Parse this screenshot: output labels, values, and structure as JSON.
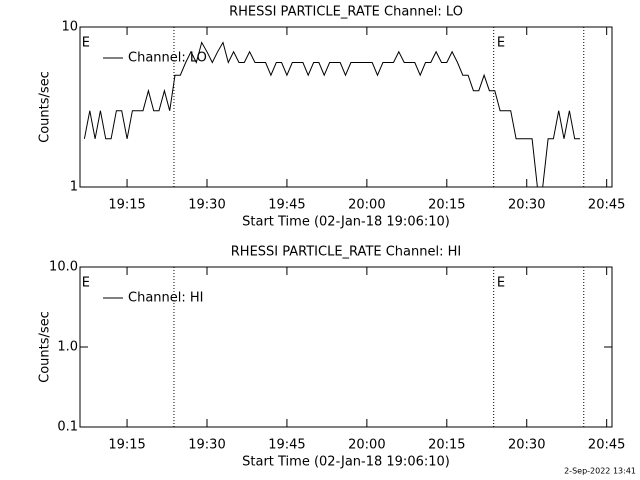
{
  "chart_data": [
    {
      "type": "line",
      "title": "RHESSI PARTICLE_RATE Channel: LO",
      "x_label": "Start Time (02-Jan-18 19:06:10)",
      "y_label": "Counts/sec",
      "log_y": true,
      "legend": "upper left",
      "xlim": [
        6.17,
        106
      ],
      "xticks": [
        {
          "value": 15,
          "label": "19:15"
        },
        {
          "value": 30,
          "label": "19:30"
        },
        {
          "value": 45,
          "label": "19:45"
        },
        {
          "value": 60,
          "label": "20:00"
        },
        {
          "value": 75,
          "label": "20:15"
        },
        {
          "value": 90,
          "label": "20:30"
        },
        {
          "value": 105,
          "label": "20:45"
        }
      ],
      "ylim": [
        1,
        10
      ],
      "yticks": [
        1,
        10
      ],
      "vlines": [
        23.8,
        83.8,
        100.7
      ],
      "annotations": [
        {
          "text": "E",
          "x": 6.5
        },
        {
          "text": "E",
          "x": 84.4
        }
      ],
      "x": [
        7,
        8,
        9,
        10,
        11,
        12,
        13,
        14,
        15,
        16,
        17,
        18,
        19,
        20,
        21,
        22,
        23,
        24,
        25,
        26,
        27,
        28,
        29,
        30,
        31,
        32,
        33,
        34,
        35,
        36,
        37,
        38,
        39,
        40,
        41,
        42,
        43,
        44,
        45,
        46,
        47,
        48,
        49,
        50,
        51,
        52,
        53,
        54,
        55,
        56,
        57,
        58,
        59,
        60,
        61,
        62,
        63,
        64,
        65,
        66,
        67,
        68,
        69,
        70,
        71,
        72,
        73,
        74,
        75,
        76,
        77,
        78,
        79,
        80,
        81,
        82,
        83,
        84,
        85,
        86,
        87,
        88,
        89,
        90,
        91,
        92,
        93,
        94,
        95,
        96,
        97,
        98,
        99,
        100
      ],
      "series": [
        {
          "name": "Channel: LO",
          "color": "#000000",
          "values": [
            2,
            3,
            2,
            3,
            2,
            2,
            3,
            3,
            2,
            3,
            3,
            3,
            4,
            3,
            3,
            4,
            3,
            5,
            5,
            6,
            7,
            6,
            8,
            7,
            6,
            7,
            8,
            6,
            7,
            6,
            6,
            7,
            6,
            6,
            6,
            5,
            6,
            6,
            5,
            6,
            6,
            6,
            5,
            6,
            6,
            5,
            6,
            6,
            6,
            5,
            6,
            6,
            6,
            6,
            6,
            5,
            6,
            6,
            6,
            7,
            6,
            6,
            6,
            5,
            6,
            6,
            7,
            6,
            6,
            7,
            6,
            5,
            5,
            4,
            4,
            5,
            4,
            4,
            3,
            3,
            3,
            2,
            2,
            2,
            2,
            1,
            1,
            2,
            2,
            3,
            2,
            3,
            2,
            2
          ]
        }
      ]
    },
    {
      "type": "line",
      "title": "RHESSI PARTICLE_RATE Channel: HI",
      "x_label": "Start Time (02-Jan-18 19:06:10)",
      "y_label": "Counts/sec",
      "log_y": true,
      "legend": "upper left",
      "xlim": [
        6.17,
        106
      ],
      "xticks": [
        {
          "value": 15,
          "label": "19:15"
        },
        {
          "value": 30,
          "label": "19:30"
        },
        {
          "value": 45,
          "label": "19:45"
        },
        {
          "value": 60,
          "label": "20:00"
        },
        {
          "value": 75,
          "label": "20:15"
        },
        {
          "value": 90,
          "label": "20:30"
        },
        {
          "value": 105,
          "label": "20:45"
        }
      ],
      "ylim": [
        0.1,
        10
      ],
      "yticks": [
        0.1,
        {
          "value": 1,
          "label": "1.0"
        },
        {
          "value": 10,
          "label": "10.0"
        }
      ],
      "vlines": [
        23.8,
        83.8,
        100.7
      ],
      "annotations": [
        {
          "text": "E",
          "x": 6.5
        },
        {
          "text": "E",
          "x": 84.4
        }
      ],
      "x": [],
      "series": [
        {
          "name": "Channel: HI",
          "color": "#000000",
          "values": []
        }
      ]
    }
  ],
  "footer": "2-Sep-2022 13:41"
}
